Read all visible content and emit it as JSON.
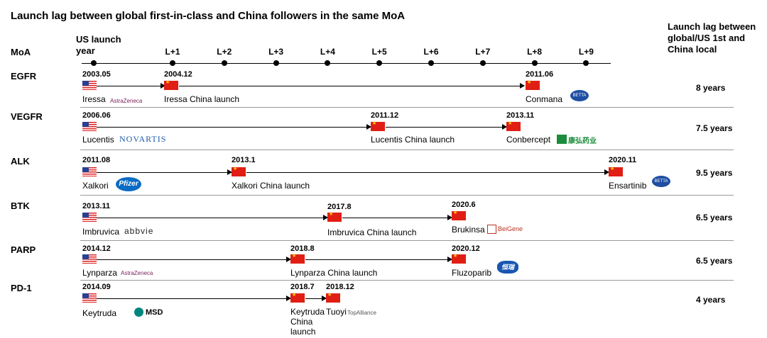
{
  "title": "Launch lag between global first-in-class and China followers in the same MoA",
  "header": {
    "moa": "MoA",
    "us_launch_line1": "US launch",
    "us_launch_line2": "year",
    "lag_header": "Launch lag between global/US 1st and China local",
    "ticks": [
      "L+1",
      "L+2",
      "L+3",
      "L+4",
      "L+5",
      "L+6",
      "L+7",
      "L+8",
      "L+9"
    ]
  },
  "rows": [
    {
      "moa": "EGFR",
      "us_date": "2003.05",
      "us_drug": "Iressa",
      "us_company": "AstraZeneca",
      "cn_date": "2004.12",
      "cn_label": "Iressa China launch",
      "local_date": "2011.06",
      "local_drug": "Conmana",
      "local_company": "BETTA",
      "lag": "8 years"
    },
    {
      "moa": "VEGFR",
      "us_date": "2006.06",
      "us_drug": "Lucentis",
      "us_company": "NOVARTIS",
      "cn_date": "2011.12",
      "cn_label": "Lucentis China launch",
      "local_date": "2013.11",
      "local_drug": "Conbercept",
      "local_company": "康弘药业",
      "lag": "7.5 years"
    },
    {
      "moa": "ALK",
      "us_date": "2011.08",
      "us_drug": "Xalkori",
      "us_company": "Pfizer",
      "cn_date": "2013.1",
      "cn_label": "Xalkori China launch",
      "local_date": "2020.11",
      "local_drug": "Ensartinib",
      "local_company": "BETTA",
      "lag": "9.5 years"
    },
    {
      "moa": "BTK",
      "us_date": "2013.11",
      "us_drug": "Imbruvica",
      "us_company": "abbvie",
      "cn_date": "2017.8",
      "cn_label": "Imbruvica China launch",
      "local_date": "2020.6",
      "local_drug": "Brukinsa",
      "local_company": "BeiGene",
      "lag": "6.5 years"
    },
    {
      "moa": "PARP",
      "us_date": "2014.12",
      "us_drug": "Lynparza",
      "us_company": "AstraZeneca",
      "cn_date": "2018.8",
      "cn_label": "Lynparza China launch",
      "local_date": "2020.12",
      "local_drug": "Fluzoparib",
      "local_company": "恒瑞",
      "lag": "6.5 years"
    },
    {
      "moa": "PD-1",
      "us_date": "2014.09",
      "us_drug": "Keytruda",
      "us_company": "MSD",
      "cn_date": "2018.7",
      "cn_label_1": "Keytruda",
      "cn_label_2": "China",
      "cn_label_3": "launch",
      "local_date": "2018.12",
      "local_drug": "Tuoyi",
      "local_company": "TopAlliance",
      "lag": "4 years"
    }
  ]
}
